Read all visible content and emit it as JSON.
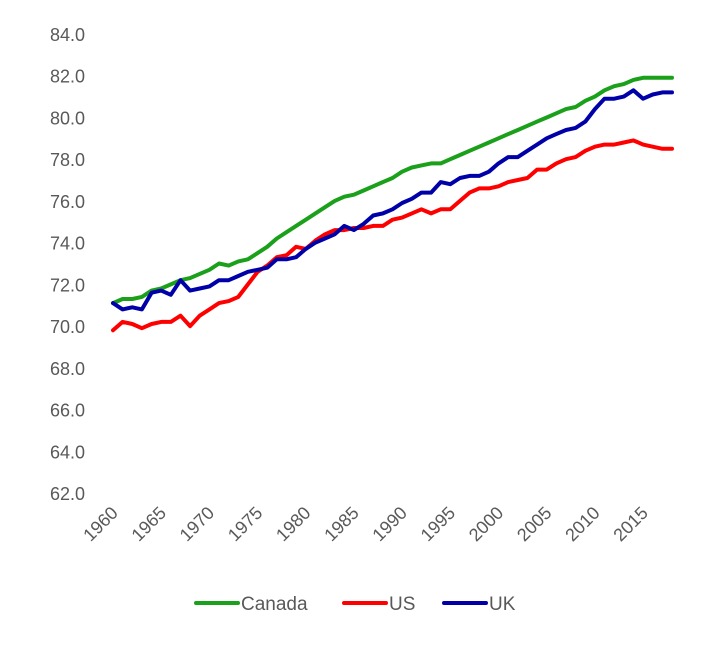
{
  "chart_data": {
    "type": "line",
    "title": "",
    "xlabel": "",
    "ylabel": "",
    "ylim": [
      62.0,
      84.0
    ],
    "y_ticks": [
      "62.0",
      "64.0",
      "66.0",
      "68.0",
      "70.0",
      "72.0",
      "74.0",
      "76.0",
      "78.0",
      "80.0",
      "82.0",
      "84.0"
    ],
    "x_ticks": [
      "1960",
      "1965",
      "1970",
      "1975",
      "1980",
      "1985",
      "1990",
      "1995",
      "2000",
      "2005",
      "2010",
      "2015"
    ],
    "grid": false,
    "legend_position": "bottom",
    "x": [
      1960,
      1961,
      1962,
      1963,
      1964,
      1965,
      1966,
      1967,
      1968,
      1969,
      1970,
      1971,
      1972,
      1973,
      1974,
      1975,
      1976,
      1977,
      1978,
      1979,
      1980,
      1981,
      1982,
      1983,
      1984,
      1985,
      1986,
      1987,
      1988,
      1989,
      1990,
      1991,
      1992,
      1993,
      1994,
      1995,
      1996,
      1997,
      1998,
      1999,
      2000,
      2001,
      2002,
      2003,
      2004,
      2005,
      2006,
      2007,
      2008,
      2009,
      2010,
      2011,
      2012,
      2013,
      2014,
      2015,
      2016,
      2017,
      2018
    ],
    "series": [
      {
        "name": "Canada",
        "color": "#1aa01a",
        "values": [
          71.1,
          71.3,
          71.3,
          71.4,
          71.7,
          71.8,
          72.0,
          72.2,
          72.3,
          72.5,
          72.7,
          73.0,
          72.9,
          73.1,
          73.2,
          73.5,
          73.8,
          74.2,
          74.5,
          74.8,
          75.1,
          75.4,
          75.7,
          76.0,
          76.2,
          76.3,
          76.5,
          76.7,
          76.9,
          77.1,
          77.4,
          77.6,
          77.7,
          77.8,
          77.8,
          78.0,
          78.2,
          78.4,
          78.6,
          78.8,
          79.0,
          79.2,
          79.4,
          79.6,
          79.8,
          80.0,
          80.2,
          80.4,
          80.5,
          80.8,
          81.0,
          81.3,
          81.5,
          81.6,
          81.8,
          81.9,
          81.9,
          81.9,
          81.9
        ]
      },
      {
        "name": "US",
        "color": "#ff0000",
        "values": [
          69.8,
          70.2,
          70.1,
          69.9,
          70.1,
          70.2,
          70.2,
          70.5,
          70.0,
          70.5,
          70.8,
          71.1,
          71.2,
          71.4,
          72.0,
          72.6,
          72.9,
          73.3,
          73.4,
          73.8,
          73.7,
          74.1,
          74.4,
          74.6,
          74.6,
          74.7,
          74.7,
          74.8,
          74.8,
          75.1,
          75.2,
          75.4,
          75.6,
          75.4,
          75.6,
          75.6,
          76.0,
          76.4,
          76.6,
          76.6,
          76.7,
          76.9,
          77.0,
          77.1,
          77.5,
          77.5,
          77.8,
          78.0,
          78.1,
          78.4,
          78.6,
          78.7,
          78.7,
          78.8,
          78.9,
          78.7,
          78.6,
          78.5,
          78.5
        ]
      },
      {
        "name": "UK",
        "color": "#0000a8",
        "values": [
          71.1,
          70.8,
          70.9,
          70.8,
          71.6,
          71.7,
          71.5,
          72.2,
          71.7,
          71.8,
          71.9,
          72.2,
          72.2,
          72.4,
          72.6,
          72.7,
          72.8,
          73.2,
          73.2,
          73.3,
          73.7,
          74.0,
          74.2,
          74.4,
          74.8,
          74.6,
          74.9,
          75.3,
          75.4,
          75.6,
          75.9,
          76.1,
          76.4,
          76.4,
          76.9,
          76.8,
          77.1,
          77.2,
          77.2,
          77.4,
          77.8,
          78.1,
          78.1,
          78.4,
          78.7,
          79.0,
          79.2,
          79.4,
          79.5,
          79.8,
          80.4,
          80.9,
          80.9,
          81.0,
          81.3,
          80.9,
          81.1,
          81.2,
          81.2
        ]
      }
    ]
  }
}
